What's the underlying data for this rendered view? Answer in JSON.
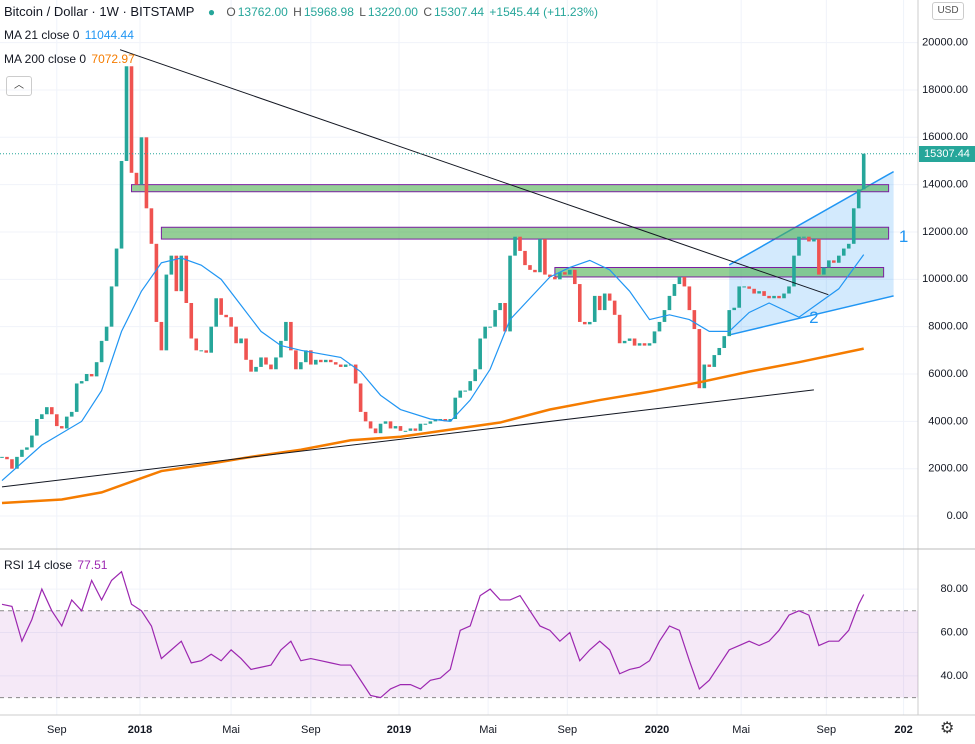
{
  "header": {
    "symbol": "Bitcoin / Dollar · 1W · BITSTAMP",
    "o_label": "O",
    "o": "13762.00",
    "h_label": "H",
    "h": "15968.98",
    "l_label": "L",
    "l": "13220.00",
    "c_label": "C",
    "c": "15307.44",
    "change": "+1545.44 (+11.23%)",
    "ma21_label": "MA 21 close 0",
    "ma21_value": "11044.44",
    "ma200_label": "MA 200 close 0",
    "ma200_value": "7072.97",
    "currency": "USD",
    "last_price": "15307.44",
    "rsi_label": "RSI 14 close",
    "rsi_value": "77.51"
  },
  "chart_data": [
    {
      "type": "candlestick",
      "up_color": "#26a69a",
      "down_color": "#ef5350",
      "grid": true,
      "xlim": [
        -0.4,
        183.9
      ],
      "ylim": [
        -1350,
        21800
      ],
      "xticks": [
        {
          "value": 11,
          "label": "Sep"
        },
        {
          "value": 27.7,
          "label": "2018"
        },
        {
          "value": 46,
          "label": "Mai"
        },
        {
          "value": 62,
          "label": "Sep"
        },
        {
          "value": 79.7,
          "label": "2019"
        },
        {
          "value": 97.6,
          "label": "Mai"
        },
        {
          "value": 113.5,
          "label": "Sep"
        },
        {
          "value": 131.5,
          "label": "2020"
        },
        {
          "value": 148.4,
          "label": "Mai"
        },
        {
          "value": 165.5,
          "label": "Sep"
        },
        {
          "value": 181,
          "label": "202"
        }
      ],
      "yticks": [
        {
          "value": 0,
          "label": "0.00"
        },
        {
          "value": 2000,
          "label": "2000.00"
        },
        {
          "value": 4000,
          "label": "4000.00"
        },
        {
          "value": 6000,
          "label": "6000.00"
        },
        {
          "value": 8000,
          "label": "8000.00"
        },
        {
          "value": 10000,
          "label": "10000.00"
        },
        {
          "value": 12000,
          "label": "12000.00"
        },
        {
          "value": 14000,
          "label": "14000.00"
        },
        {
          "value": 16000,
          "label": "16000.00"
        },
        {
          "value": 18000,
          "label": "18000.00"
        },
        {
          "value": 20000,
          "label": "20000.00"
        }
      ],
      "last": 15307.44,
      "series": [
        {
          "kind": "candles",
          "values": [
            2500,
            2400,
            2000,
            2500,
            2800,
            2900,
            3400,
            4100,
            4300,
            4600,
            4300,
            3800,
            3700,
            4200,
            4400,
            5600,
            5700,
            6000,
            5900,
            6500,
            7400,
            8000,
            9700,
            11300,
            15000,
            19000,
            14500,
            14000,
            16000,
            13000,
            11500,
            8200,
            7000,
            10200,
            11000,
            9500,
            11000,
            9000,
            7500,
            7000,
            7000,
            6900,
            8000,
            9200,
            8500,
            8400,
            8000,
            7300,
            7500,
            6600,
            6100,
            6300,
            6700,
            6400,
            6200,
            6700,
            7400,
            8200,
            7000,
            6200,
            6500,
            7000,
            6400,
            6600,
            6500,
            6600,
            6500,
            6400,
            6300,
            6400,
            6400,
            5600,
            4400,
            4000,
            3700,
            3500,
            3900,
            4000,
            3700,
            3800,
            3600,
            3600,
            3700,
            3600,
            3900,
            3900,
            4000,
            4100,
            4100,
            4000,
            4100,
            5000,
            5300,
            5300,
            5700,
            6200,
            7500,
            8000,
            8000,
            8700,
            9000,
            7800,
            11000,
            11800,
            11200,
            10600,
            10400,
            10300,
            11700,
            10200,
            10100,
            10000,
            10300,
            10200,
            10400,
            9800,
            8200,
            8100,
            8200,
            9300,
            8700,
            9400,
            9100,
            8500,
            7300,
            7400,
            7500,
            7200,
            7300,
            7200,
            7300,
            7800,
            8200,
            8700,
            9300,
            9800,
            10100,
            9700,
            8700,
            7900,
            5400,
            6400,
            6300,
            6800,
            7100,
            7600,
            8700,
            8800,
            9700,
            9700,
            9600,
            9400,
            9500,
            9300,
            9200,
            9300,
            9200,
            9400,
            9700,
            11000,
            11800,
            11800,
            11600,
            11700,
            10200,
            10500,
            10800,
            10700,
            11000,
            11300,
            11500,
            13000,
            13800,
            15307.44
          ]
        },
        {
          "kind": "line",
          "color": "#2196f3",
          "x": [
            0,
            8,
            16,
            20,
            24,
            28,
            32,
            36,
            40,
            44,
            48,
            52,
            56,
            60,
            68,
            72,
            76,
            80,
            86,
            90,
            94,
            98,
            102,
            106,
            110,
            114,
            118,
            122,
            126,
            130,
            134,
            138,
            142,
            146,
            150,
            154,
            160,
            164,
            168,
            173
          ],
          "values": [
            1500,
            3000,
            4000,
            5300,
            7800,
            9500,
            10700,
            10900,
            10600,
            10000,
            8900,
            7800,
            7200,
            7000,
            6700,
            6100,
            5100,
            4500,
            4100,
            4000,
            4900,
            6200,
            8300,
            9200,
            10100,
            10500,
            10800,
            10400,
            9500,
            8300,
            8500,
            8300,
            7800,
            7800,
            8600,
            9000,
            8400,
            9000,
            9600,
            11044.44
          ]
        },
        {
          "kind": "line",
          "color": "#f57c00",
          "x": [
            0,
            12,
            20,
            26,
            32,
            40,
            50,
            60,
            70,
            80,
            90,
            100,
            110,
            120,
            130,
            140,
            150,
            160,
            173
          ],
          "values": [
            550,
            700,
            1000,
            1450,
            1900,
            2150,
            2500,
            2800,
            3200,
            3350,
            3650,
            3950,
            4500,
            4900,
            5250,
            5650,
            6100,
            6500,
            7072.97
          ]
        }
      ],
      "zones": [
        {
          "x": [
            26,
            178
          ],
          "y": [
            13700,
            14000
          ]
        },
        {
          "x": [
            32,
            178
          ],
          "y": [
            11700,
            12200
          ]
        },
        {
          "x": [
            111,
            177
          ],
          "y": [
            10100,
            10500
          ]
        }
      ],
      "trendlines": [
        {
          "x": [
            23.7,
            165.9
          ],
          "y": [
            19700,
            9350
          ]
        },
        {
          "x": [
            0,
            163
          ],
          "y": [
            1230,
            5330
          ]
        }
      ],
      "channel": {
        "x": [
          146,
          179
        ],
        "lower": [
          7650,
          9300
        ],
        "upper": [
          10610,
          14550
        ]
      },
      "annotations": [
        {
          "text": "1",
          "x": 181,
          "y": 11760
        },
        {
          "text": "2",
          "x": 163,
          "y": 8350
        }
      ]
    },
    {
      "type": "line",
      "color": "#9c27b0",
      "band": [
        30,
        70
      ],
      "grid": true,
      "xlim": [
        -0.4,
        183.9
      ],
      "ylim": [
        22,
        98
      ],
      "yticks": [
        {
          "value": 40,
          "label": "40.00"
        },
        {
          "value": 60,
          "label": "60.00"
        },
        {
          "value": 80,
          "label": "80.00"
        }
      ],
      "x": [
        0,
        2,
        4,
        6,
        8,
        10,
        12,
        14,
        16,
        18,
        20,
        22,
        24,
        26,
        28,
        30,
        32,
        34,
        36,
        38,
        40,
        42,
        44,
        46,
        48,
        50,
        52,
        54,
        56,
        58,
        60,
        62,
        64,
        66,
        68,
        70,
        72,
        74,
        76,
        78,
        80,
        82,
        84,
        86,
        88,
        90,
        92,
        94,
        96,
        98,
        100,
        102,
        104,
        106,
        108,
        110,
        112,
        114,
        116,
        118,
        120,
        122,
        124,
        126,
        128,
        130,
        132,
        134,
        136,
        138,
        140,
        142,
        144,
        146,
        148,
        150,
        152,
        154,
        156,
        158,
        160,
        162,
        164,
        166,
        168,
        170,
        172,
        173
      ],
      "values": [
        73,
        72,
        56,
        66,
        80,
        70,
        63,
        75,
        70,
        84,
        75,
        84,
        88,
        73,
        70,
        63,
        48,
        52,
        56,
        46,
        47,
        50,
        47,
        52,
        48,
        43,
        44,
        45,
        52,
        56,
        47,
        48,
        47,
        46,
        45,
        45,
        38,
        31,
        30,
        34,
        36,
        36,
        34,
        38,
        39,
        43,
        61,
        63,
        77,
        80,
        75,
        75,
        77,
        70,
        63,
        61,
        56,
        60,
        47,
        52,
        56,
        52,
        41,
        43,
        44,
        47,
        56,
        63,
        61,
        47,
        34,
        38,
        45,
        52,
        54,
        56,
        54,
        56,
        61,
        68,
        70,
        68,
        54,
        56,
        56,
        61,
        73,
        77.51
      ]
    }
  ]
}
